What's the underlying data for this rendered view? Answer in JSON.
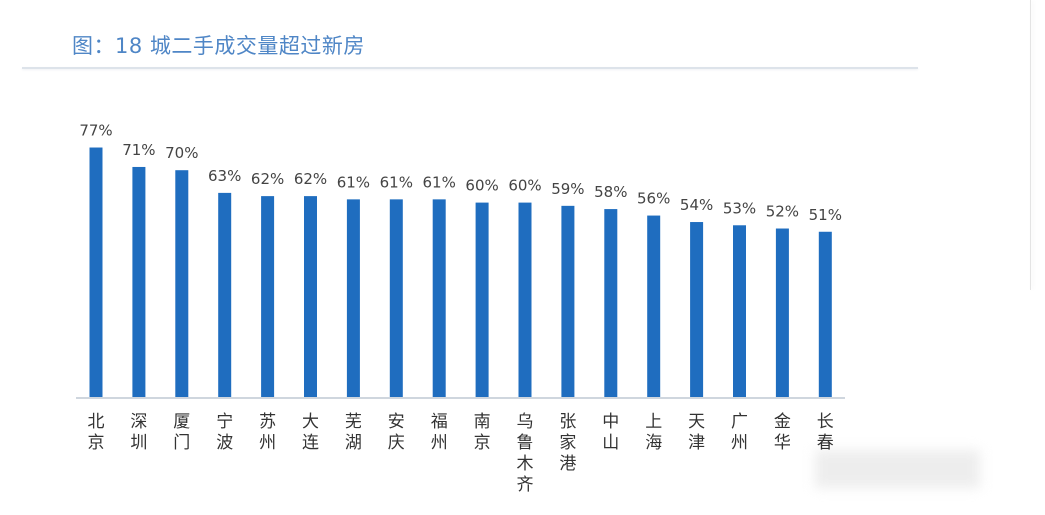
{
  "chart_data": {
    "type": "bar",
    "title": "图：18 城二手成交量超过新房",
    "categories": [
      "北京",
      "深圳",
      "厦门",
      "宁波",
      "苏州",
      "大连",
      "芜湖",
      "安庆",
      "福州",
      "南京",
      "乌鲁木齐",
      "张家港",
      "中山",
      "上海",
      "天津",
      "广州",
      "金华",
      "长春"
    ],
    "values": [
      77,
      71,
      70,
      63,
      62,
      62,
      61,
      61,
      61,
      60,
      60,
      59,
      58,
      56,
      54,
      53,
      52,
      51
    ],
    "value_labels": [
      "77%",
      "71%",
      "70%",
      "63%",
      "62%",
      "62%",
      "61%",
      "61%",
      "61%",
      "60%",
      "60%",
      "59%",
      "58%",
      "56%",
      "54%",
      "53%",
      "52%",
      "51%"
    ],
    "xlabel": "",
    "ylabel": "",
    "ylim": [
      0,
      80
    ],
    "grid": false,
    "bar_color": "#1f6dbf",
    "title_color": "#4f86c6"
  }
}
